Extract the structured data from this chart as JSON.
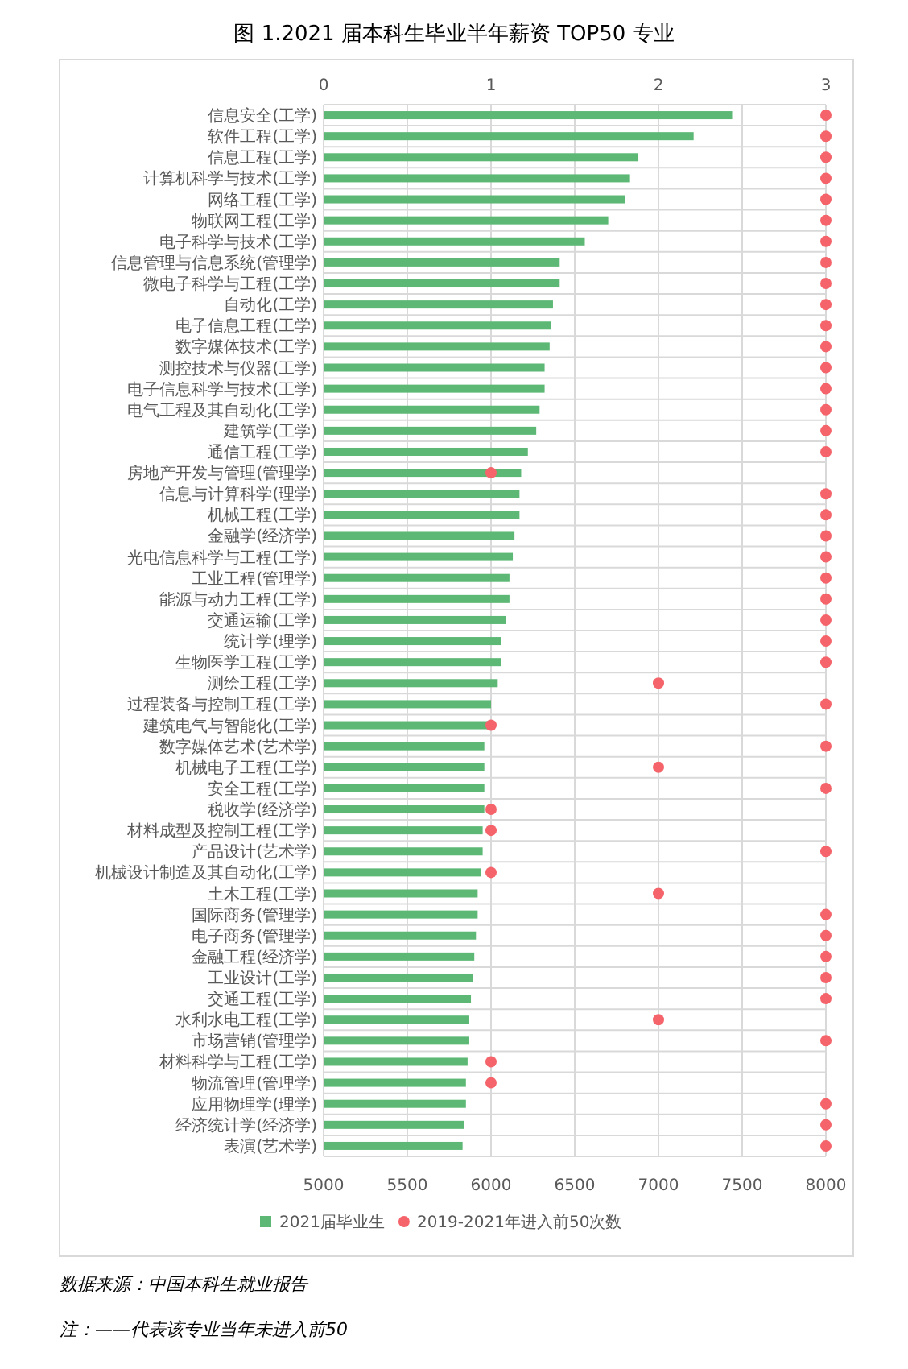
{
  "chart_data": {
    "type": "bar",
    "orientation": "horizontal",
    "title": "图 1.2021 届本科生毕业半年薪资 TOP50 专业",
    "categories": [
      "信息安全(工学)",
      "软件工程(工学)",
      "信息工程(工学)",
      "计算机科学与技术(工学)",
      "网络工程(工学)",
      "物联网工程(工学)",
      "电子科学与技术(工学)",
      "信息管理与信息系统(管理学)",
      "微电子科学与工程(工学)",
      "自动化(工学)",
      "电子信息工程(工学)",
      "数字媒体技术(工学)",
      "测控技术与仪器(工学)",
      "电子信息科学与技术(工学)",
      "电气工程及其自动化(工学)",
      "建筑学(工学)",
      "通信工程(工学)",
      "房地产开发与管理(管理学)",
      "信息与计算科学(理学)",
      "机械工程(工学)",
      "金融学(经济学)",
      "光电信息科学与工程(工学)",
      "工业工程(管理学)",
      "能源与动力工程(工学)",
      "交通运输(工学)",
      "统计学(理学)",
      "生物医学工程(工学)",
      "测绘工程(工学)",
      "过程装备与控制工程(工学)",
      "建筑电气与智能化(工学)",
      "数字媒体艺术(艺术学)",
      "机械电子工程(工学)",
      "安全工程(工学)",
      "税收学(经济学)",
      "材料成型及控制工程(工学)",
      "产品设计(艺术学)",
      "机械设计制造及其自动化(工学)",
      "土木工程(工学)",
      "国际商务(管理学)",
      "电子商务(管理学)",
      "金融工程(经济学)",
      "工业设计(工学)",
      "交通工程(工学)",
      "水利水电工程(工学)",
      "市场营销(管理学)",
      "材料科学与工程(工学)",
      "物流管理(管理学)",
      "应用物理学(理学)",
      "经济统计学(经济学)",
      "表演(艺术学)"
    ],
    "series": [
      {
        "name": "2021届毕业生",
        "color": "#5cb874",
        "values": [
          7440,
          7210,
          6880,
          6830,
          6800,
          6700,
          6560,
          6410,
          6410,
          6370,
          6360,
          6350,
          6320,
          6320,
          6290,
          6270,
          6220,
          6180,
          6170,
          6170,
          6140,
          6130,
          6110,
          6110,
          6090,
          6060,
          6060,
          6040,
          6000,
          5980,
          5960,
          5960,
          5960,
          5960,
          5950,
          5950,
          5940,
          5920,
          5920,
          5910,
          5900,
          5890,
          5880,
          5870,
          5870,
          5860,
          5850,
          5850,
          5840,
          5830
        ]
      },
      {
        "name": "2019-2021年进入前50次数",
        "type": "scatter",
        "axis": "x2",
        "color": "#f4646a",
        "marker": "circle",
        "values": [
          3,
          3,
          3,
          3,
          3,
          3,
          3,
          3,
          3,
          3,
          3,
          3,
          3,
          3,
          3,
          3,
          3,
          1,
          3,
          3,
          3,
          3,
          3,
          3,
          3,
          3,
          3,
          2,
          3,
          1,
          3,
          2,
          3,
          1,
          1,
          3,
          1,
          2,
          3,
          3,
          3,
          3,
          3,
          2,
          3,
          1,
          1,
          3,
          3,
          3
        ]
      }
    ],
    "xlim": [
      5000,
      8000
    ],
    "xticks": [
      5000,
      5500,
      6000,
      6500,
      7000,
      7500,
      8000
    ],
    "x2lim": [
      0,
      3
    ],
    "x2ticks": [
      0,
      1,
      2,
      3
    ],
    "grid": true,
    "legend": "bottom",
    "annotations": [
      "数据来源：中国本科生就业报告",
      "注：——代表该专业当年未进入前50"
    ]
  }
}
